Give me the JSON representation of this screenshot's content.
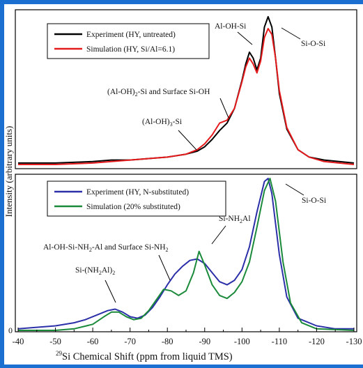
{
  "chart_data": [
    {
      "type": "line",
      "panel": "top",
      "legend_placement": "top-left",
      "x_range": [
        -40,
        -130
      ],
      "series": [
        {
          "name": "Experiment (HY, untreated)",
          "color": "#000000",
          "points": [
            [
              -40,
              0.01
            ],
            [
              -50,
              0.01
            ],
            [
              -60,
              0.02
            ],
            [
              -65,
              0.03
            ],
            [
              -70,
              0.03
            ],
            [
              -75,
              0.04
            ],
            [
              -80,
              0.05
            ],
            [
              -85,
              0.07
            ],
            [
              -88,
              0.09
            ],
            [
              -90,
              0.12
            ],
            [
              -92,
              0.17
            ],
            [
              -94,
              0.23
            ],
            [
              -96,
              0.28
            ],
            [
              -98,
              0.38
            ],
            [
              -100,
              0.57
            ],
            [
              -101,
              0.68
            ],
            [
              -102,
              0.76
            ],
            [
              -103,
              0.72
            ],
            [
              -104,
              0.64
            ],
            [
              -105,
              0.72
            ],
            [
              -106,
              0.93
            ],
            [
              -107,
              1.0
            ],
            [
              -108,
              0.93
            ],
            [
              -109,
              0.72
            ],
            [
              -110,
              0.48
            ],
            [
              -112,
              0.24
            ],
            [
              -115,
              0.1
            ],
            [
              -118,
              0.05
            ],
            [
              -122,
              0.03
            ],
            [
              -126,
              0.02
            ],
            [
              -130,
              0.01
            ]
          ]
        },
        {
          "name": "Simulation (HY, Si/Al=6.1)",
          "color": "#e41a1c",
          "points": [
            [
              -40,
              0.0
            ],
            [
              -50,
              0.0
            ],
            [
              -60,
              0.01
            ],
            [
              -65,
              0.02
            ],
            [
              -70,
              0.03
            ],
            [
              -75,
              0.04
            ],
            [
              -80,
              0.05
            ],
            [
              -85,
              0.07
            ],
            [
              -88,
              0.1
            ],
            [
              -90,
              0.14
            ],
            [
              -92,
              0.2
            ],
            [
              -94,
              0.28
            ],
            [
              -96,
              0.3
            ],
            [
              -98,
              0.38
            ],
            [
              -100,
              0.56
            ],
            [
              -101,
              0.66
            ],
            [
              -102,
              0.72
            ],
            [
              -103,
              0.68
            ],
            [
              -104,
              0.62
            ],
            [
              -105,
              0.7
            ],
            [
              -106,
              0.86
            ],
            [
              -107,
              0.92
            ],
            [
              -108,
              0.88
            ],
            [
              -109,
              0.72
            ],
            [
              -110,
              0.5
            ],
            [
              -112,
              0.25
            ],
            [
              -115,
              0.1
            ],
            [
              -118,
              0.05
            ],
            [
              -122,
              0.02
            ],
            [
              -126,
              0.01
            ],
            [
              -130,
              0.0
            ]
          ]
        }
      ],
      "annotations": [
        {
          "text": "Al-OH-Si",
          "x": -102
        },
        {
          "text": "Si-O-Si",
          "x": -107
        },
        {
          "text": "(Al-OH)2-Si and Surface Si-OH",
          "x": -94
        },
        {
          "text": "(Al-OH)3-Si",
          "x": -88
        }
      ]
    },
    {
      "type": "line",
      "panel": "bottom",
      "legend_placement": "top-left",
      "x_range": [
        -40,
        -130
      ],
      "y_ticks": [
        0
      ],
      "series": [
        {
          "name": "Experiment (HY, N-substituted)",
          "color": "#2b2fa8",
          "points": [
            [
              -40,
              0.01
            ],
            [
              -45,
              0.02
            ],
            [
              -50,
              0.03
            ],
            [
              -55,
              0.05
            ],
            [
              -58,
              0.07
            ],
            [
              -61,
              0.1
            ],
            [
              -64,
              0.13
            ],
            [
              -66,
              0.14
            ],
            [
              -68,
              0.12
            ],
            [
              -70,
              0.09
            ],
            [
              -72,
              0.08
            ],
            [
              -74,
              0.1
            ],
            [
              -76,
              0.15
            ],
            [
              -78,
              0.22
            ],
            [
              -80,
              0.3
            ],
            [
              -82,
              0.37
            ],
            [
              -84,
              0.42
            ],
            [
              -86,
              0.46
            ],
            [
              -88,
              0.47
            ],
            [
              -90,
              0.44
            ],
            [
              -92,
              0.38
            ],
            [
              -94,
              0.32
            ],
            [
              -96,
              0.3
            ],
            [
              -98,
              0.33
            ],
            [
              -100,
              0.4
            ],
            [
              -102,
              0.55
            ],
            [
              -104,
              0.78
            ],
            [
              -106,
              0.98
            ],
            [
              -107,
              1.0
            ],
            [
              -108,
              0.9
            ],
            [
              -110,
              0.5
            ],
            [
              -112,
              0.22
            ],
            [
              -115,
              0.08
            ],
            [
              -120,
              0.03
            ],
            [
              -125,
              0.01
            ],
            [
              -130,
              0.01
            ]
          ]
        },
        {
          "name": "Simulation (20% substituted)",
          "color": "#1a8a3a",
          "points": [
            [
              -40,
              0.0
            ],
            [
              -50,
              0.0
            ],
            [
              -55,
              0.01
            ],
            [
              -60,
              0.04
            ],
            [
              -63,
              0.09
            ],
            [
              -65,
              0.12
            ],
            [
              -67,
              0.12
            ],
            [
              -69,
              0.09
            ],
            [
              -71,
              0.07
            ],
            [
              -73,
              0.08
            ],
            [
              -75,
              0.13
            ],
            [
              -77,
              0.2
            ],
            [
              -79,
              0.27
            ],
            [
              -81,
              0.26
            ],
            [
              -83,
              0.23
            ],
            [
              -85,
              0.26
            ],
            [
              -87,
              0.38
            ],
            [
              -88.5,
              0.52
            ],
            [
              -90,
              0.43
            ],
            [
              -92,
              0.3
            ],
            [
              -94,
              0.23
            ],
            [
              -96,
              0.21
            ],
            [
              -98,
              0.25
            ],
            [
              -100,
              0.32
            ],
            [
              -102,
              0.45
            ],
            [
              -104,
              0.68
            ],
            [
              -106,
              0.92
            ],
            [
              -107.5,
              1.0
            ],
            [
              -109,
              0.85
            ],
            [
              -111,
              0.45
            ],
            [
              -113,
              0.18
            ],
            [
              -116,
              0.05
            ],
            [
              -120,
              0.01
            ],
            [
              -130,
              0.0
            ]
          ]
        }
      ],
      "annotations": [
        {
          "text": "Si-O-Si",
          "x": -108
        },
        {
          "text": "Si-NH2Al",
          "x": -88
        },
        {
          "text": "Al-OH-Si-NH2-Al and Surface Si-NH2",
          "x": -80
        },
        {
          "text": "Si-(NH2Al)2",
          "x": -65
        }
      ]
    }
  ],
  "text": {
    "y_axis_label": "Intensity (arbitrary units)",
    "x_axis_label": "29Si Chemical Shift (ppm from liquid TMS)",
    "x_ticks": [
      "-40",
      "-50",
      "-60",
      "-70",
      "-80",
      "-90",
      "-100",
      "-110",
      "-120",
      "-130"
    ],
    "y_tick_zero": "0",
    "top_legend": [
      "Experiment (HY, untreated)",
      "Simulation (HY, Si/Al=6.1)"
    ],
    "bottom_legend": [
      "Experiment (HY, N-substituted)",
      "Simulation (20% substituted)"
    ]
  }
}
